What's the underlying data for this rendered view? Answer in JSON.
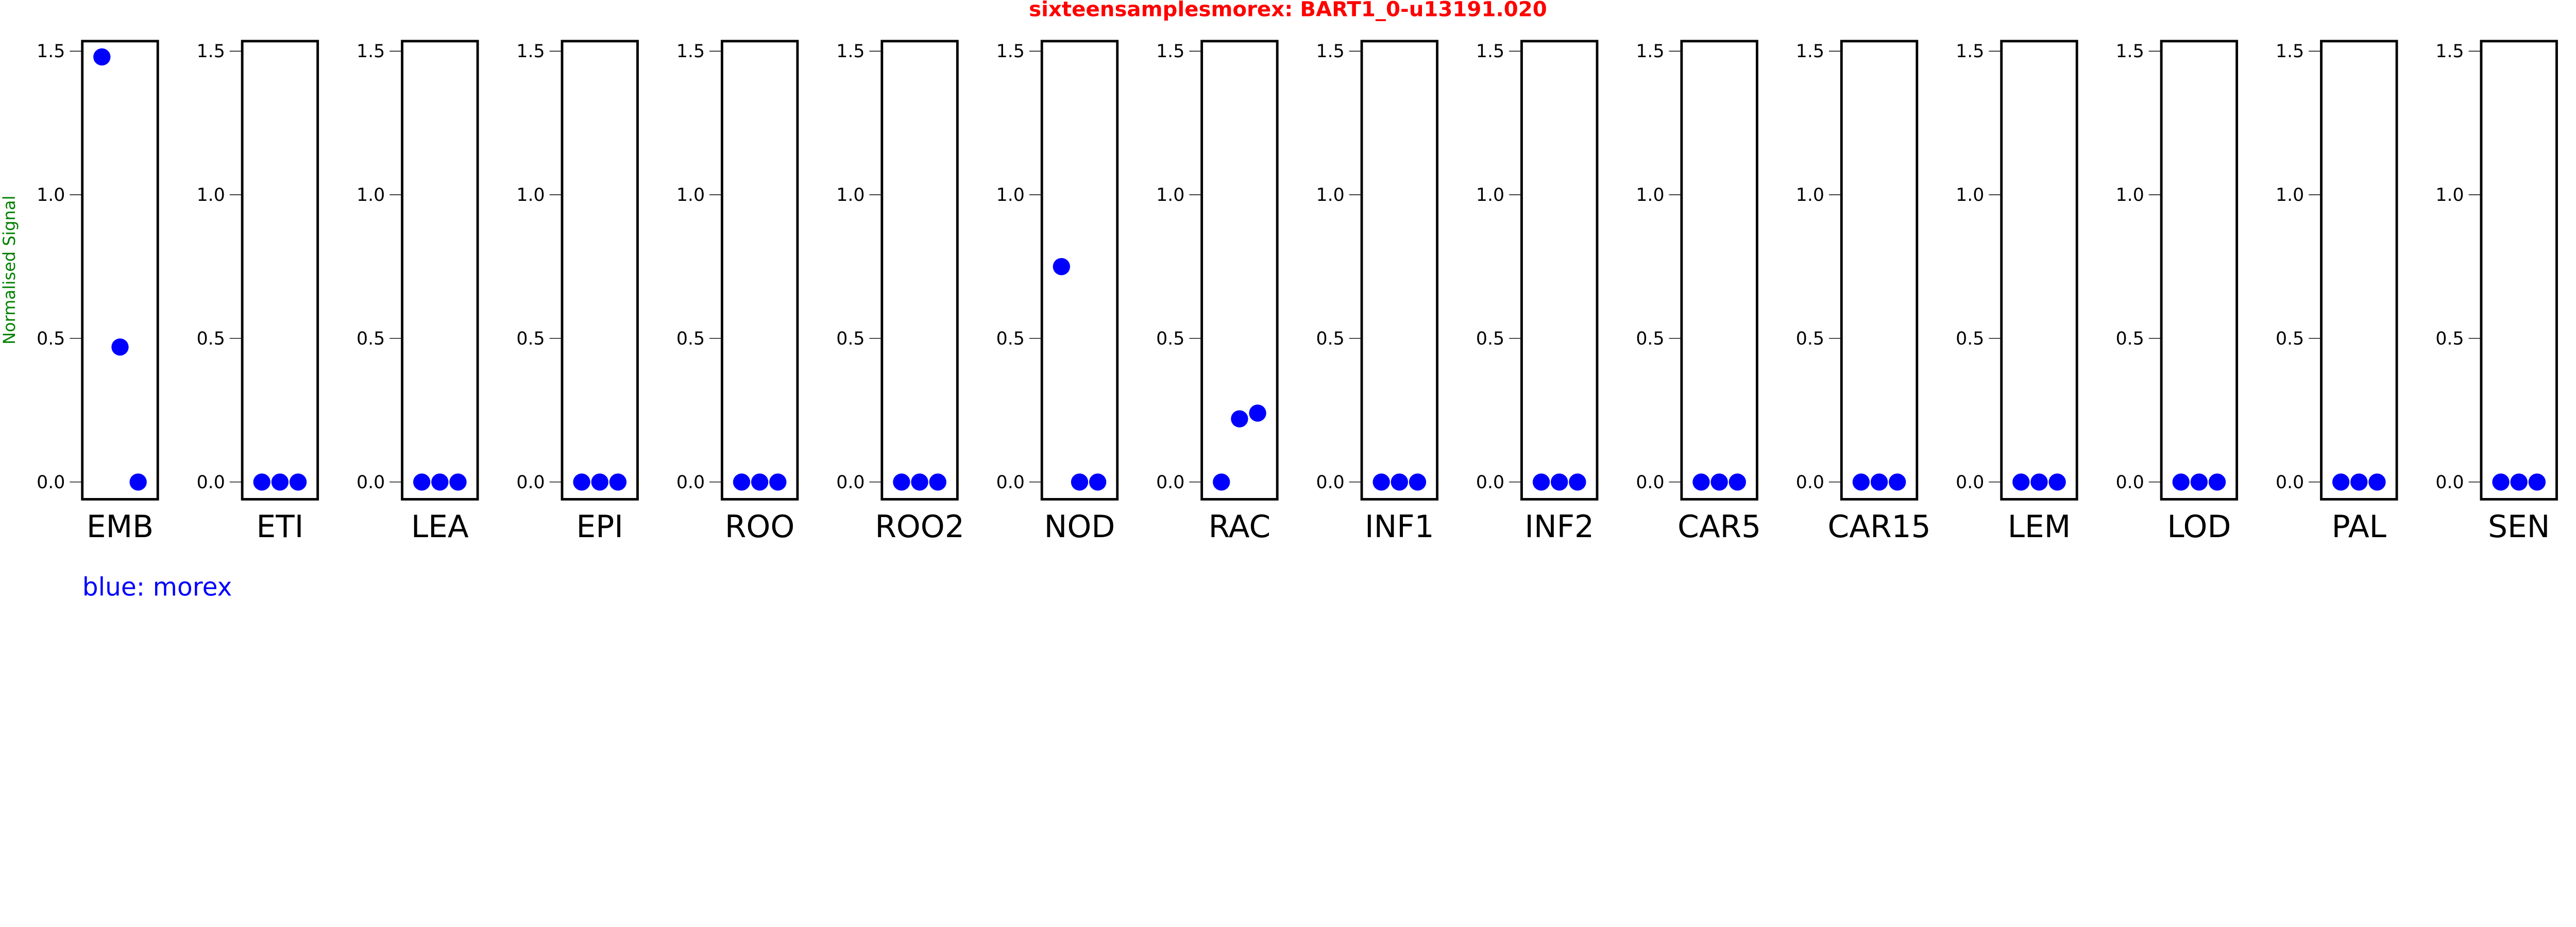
{
  "chart_data": {
    "type": "scatter",
    "title": "sixteensamplesmorex: BART1_0-u13191.020",
    "ylabel": "Normalised Signal",
    "xlabel": "",
    "ylim": [
      -0.06,
      1.535
    ],
    "yticks": [
      0.0,
      0.5,
      1.0,
      1.5
    ],
    "ytick_labels": [
      "0.0",
      "0.5",
      "1.0",
      "1.5"
    ],
    "grid": false,
    "legend": {
      "text": "blue: morex",
      "placement": "bottom-left"
    },
    "colors": {
      "title": "#ff0000",
      "ylabel": "#008000",
      "points": "#0000ff",
      "legend": "#0000ff"
    },
    "panels": [
      {
        "category": "EMB",
        "values": [
          1.48,
          0.47,
          0.0
        ]
      },
      {
        "category": "ETI",
        "values": [
          0.0,
          0.0,
          0.0
        ]
      },
      {
        "category": "LEA",
        "values": [
          0.0,
          0.0,
          0.0
        ]
      },
      {
        "category": "EPI",
        "values": [
          0.0,
          0.0,
          0.0
        ]
      },
      {
        "category": "ROO",
        "values": [
          0.0,
          0.0,
          0.0
        ]
      },
      {
        "category": "ROO2",
        "values": [
          0.0,
          0.0,
          0.0
        ]
      },
      {
        "category": "NOD",
        "values": [
          0.75,
          0.0,
          0.0
        ]
      },
      {
        "category": "RAC",
        "values": [
          0.0,
          0.22,
          0.24
        ]
      },
      {
        "category": "INF1",
        "values": [
          0.0,
          0.0,
          0.0
        ]
      },
      {
        "category": "INF2",
        "values": [
          0.0,
          0.0,
          0.0
        ]
      },
      {
        "category": "CAR5",
        "values": [
          0.0,
          0.0,
          0.0
        ]
      },
      {
        "category": "CAR15",
        "values": [
          0.0,
          0.0,
          0.0
        ]
      },
      {
        "category": "LEM",
        "values": [
          0.0,
          0.0,
          0.0
        ]
      },
      {
        "category": "LOD",
        "values": [
          0.0,
          0.0,
          0.0
        ]
      },
      {
        "category": "PAL",
        "values": [
          0.0,
          0.0,
          0.0
        ]
      },
      {
        "category": "SEN",
        "values": [
          0.0,
          0.0,
          0.0
        ]
      }
    ]
  }
}
